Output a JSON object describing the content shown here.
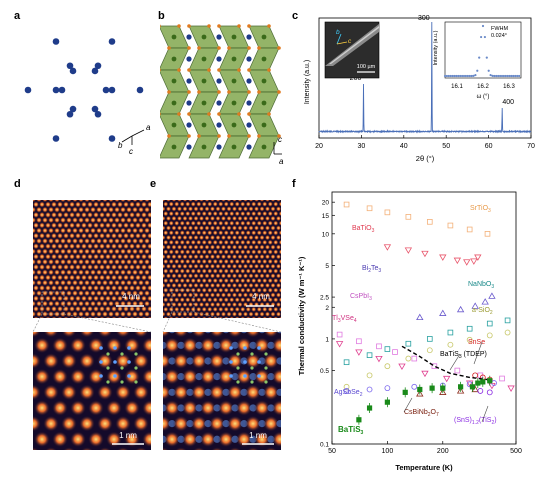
{
  "figure": {
    "panel_labels": {
      "a": "a",
      "b": "b",
      "c": "c",
      "d": "d",
      "e": "e",
      "f": "f"
    },
    "panel_a": {
      "axis_labels": [
        "b",
        "c",
        "a"
      ]
    },
    "panel_b": {
      "axis_labels": [
        "c",
        "a"
      ]
    },
    "panel_c": {
      "ylabel": "Intensity (a.u.)",
      "xlabel": "2θ (°)",
      "xticks": [
        "20",
        "30",
        "40",
        "50",
        "60",
        "70"
      ],
      "peak_labels": [
        {
          "text": "200",
          "x": 30.5
        },
        {
          "text": "300",
          "x": 46.6
        },
        {
          "text": "400",
          "x": 63.2
        }
      ],
      "inset_left": {
        "labels": [
          "b",
          "c"
        ],
        "scalebar": "100 µm"
      },
      "inset_right": {
        "ylabel": "Intensity (a.u.)",
        "xlabel": "ω (°)",
        "xticks": [
          "16.1",
          "16.2",
          "16.3"
        ],
        "annotation_line1": "FWHM",
        "annotation_line2": "0.024°"
      }
    },
    "panel_d": {
      "scalebar_top": "4 nm",
      "scalebar_bottom": "1 nm"
    },
    "panel_e": {
      "scalebar_top": "4 nm",
      "scalebar_bottom": "1 nm"
    }
  },
  "chart_data": {
    "type": "scatter",
    "xlabel": "Temperature (K)",
    "ylabel": "Thermal conductivity (W m⁻¹ K⁻¹)",
    "x_scale": "log",
    "y_scale": "log",
    "xlim": [
      50,
      500
    ],
    "ylim": [
      0.1,
      25
    ],
    "xticks": [
      "50",
      "100",
      "200",
      "500"
    ],
    "yticks": [
      "0.1",
      "0.5",
      "1",
      "2",
      "2.5",
      "5",
      "10",
      "15",
      "20"
    ],
    "series": [
      {
        "name": "SrTiO3",
        "color": "#f3b078",
        "marker": "square",
        "points": [
          [
            60,
            19
          ],
          [
            80,
            17.5
          ],
          [
            100,
            16
          ],
          [
            130,
            14.5
          ],
          [
            170,
            13
          ],
          [
            220,
            12
          ],
          [
            280,
            11
          ],
          [
            350,
            10
          ]
        ]
      },
      {
        "name": "BaTiO3",
        "color": "#e8546a",
        "marker": "tri-down",
        "points": [
          [
            100,
            7.5
          ],
          [
            130,
            7
          ],
          [
            160,
            6.5
          ],
          [
            200,
            6
          ],
          [
            240,
            5.6
          ],
          [
            270,
            5.4
          ],
          [
            295,
            5.5
          ],
          [
            310,
            6
          ]
        ]
      },
      {
        "name": "Bi2Te3",
        "color": "#6a5acd",
        "marker": "tri-up",
        "points": [
          [
            150,
            1.6
          ],
          [
            200,
            1.75
          ],
          [
            250,
            1.9
          ],
          [
            300,
            2.05
          ],
          [
            340,
            2.25
          ],
          [
            370,
            2.55
          ]
        ]
      },
      {
        "name": "NaNbO3",
        "color": "#27a0a0",
        "marker": "square",
        "points": [
          [
            60,
            0.6
          ],
          [
            80,
            0.7
          ],
          [
            100,
            0.8
          ],
          [
            130,
            0.9
          ],
          [
            170,
            1.0
          ],
          [
            220,
            1.15
          ],
          [
            280,
            1.25
          ],
          [
            360,
            1.4
          ],
          [
            450,
            1.5
          ]
        ]
      },
      {
        "name": "a-SiO2",
        "color": "#c8c86a",
        "marker": "circle",
        "points": [
          [
            60,
            0.35
          ],
          [
            80,
            0.45
          ],
          [
            100,
            0.55
          ],
          [
            130,
            0.65
          ],
          [
            170,
            0.78
          ],
          [
            220,
            0.88
          ],
          [
            280,
            0.98
          ],
          [
            360,
            1.08
          ],
          [
            450,
            1.15
          ]
        ]
      },
      {
        "name": "CsPbI3",
        "color": "#e07ae0",
        "marker": "square",
        "points": [
          [
            55,
            1.1
          ],
          [
            70,
            0.95
          ],
          [
            90,
            0.85
          ],
          [
            110,
            0.75
          ],
          [
            140,
            0.65
          ],
          [
            180,
            0.55
          ],
          [
            240,
            0.5
          ],
          [
            320,
            0.45
          ],
          [
            420,
            0.42
          ]
        ]
      },
      {
        "name": "Tl3VSe4",
        "color": "#e04090",
        "marker": "tri-down",
        "points": [
          [
            55,
            0.9
          ],
          [
            70,
            0.75
          ],
          [
            90,
            0.65
          ],
          [
            120,
            0.55
          ],
          [
            160,
            0.47
          ],
          [
            210,
            0.42
          ],
          [
            280,
            0.38
          ],
          [
            370,
            0.36
          ],
          [
            470,
            0.34
          ]
        ]
      },
      {
        "name": "AgSbSe2",
        "color": "#7b68ee",
        "marker": "circle",
        "points": [
          [
            60,
            0.32
          ],
          [
            80,
            0.33
          ],
          [
            100,
            0.34
          ],
          [
            140,
            0.35
          ],
          [
            200,
            0.36
          ],
          [
            280,
            0.37
          ],
          [
            380,
            0.38
          ]
        ]
      },
      {
        "name": "CsBiNb2O7",
        "color": "#8b2b1a",
        "marker": "tri-up",
        "points": [
          [
            150,
            0.3
          ],
          [
            200,
            0.31
          ],
          [
            250,
            0.32
          ],
          [
            300,
            0.33
          ]
        ]
      },
      {
        "name": "SnSe",
        "color": "#d42020",
        "marker": "circle",
        "points": [
          [
            300,
            0.45
          ],
          [
            330,
            0.43
          ],
          [
            360,
            0.41
          ]
        ]
      },
      {
        "name": "(SnS)1.2(TiS2)2",
        "color": "#8a2be2",
        "marker": "circle",
        "points": [
          [
            320,
            0.32
          ],
          [
            360,
            0.31
          ]
        ]
      },
      {
        "name": "BaTiS3 (TDEP)",
        "color": "#000000",
        "marker": "dashed-line",
        "points": [
          [
            120,
            0.85
          ],
          [
            150,
            0.68
          ],
          [
            180,
            0.55
          ],
          [
            220,
            0.47
          ],
          [
            280,
            0.43
          ],
          [
            350,
            0.41
          ]
        ]
      },
      {
        "name": "BaTiS3",
        "color": "#1a8a1a",
        "marker": "filled-square",
        "points": [
          [
            70,
            0.17
          ],
          [
            80,
            0.22
          ],
          [
            100,
            0.25
          ],
          [
            125,
            0.31
          ],
          [
            150,
            0.33
          ],
          [
            175,
            0.34
          ],
          [
            200,
            0.34
          ],
          [
            250,
            0.35
          ],
          [
            290,
            0.35
          ],
          [
            310,
            0.38
          ],
          [
            330,
            0.39
          ],
          [
            360,
            0.4
          ]
        ]
      }
    ],
    "annotations": [
      {
        "text": "SrTiO",
        "sub": "3",
        "color": "#e89a4a"
      },
      {
        "text": "BaTiO",
        "sub": "3",
        "color": "#e03a50"
      },
      {
        "text": "Bi",
        "mid": "2",
        "text2": "Te",
        "sub": "3",
        "color": "#4a3ab0"
      },
      {
        "text": "NaNbO",
        "sub": "3",
        "color": "#1a8a8a"
      },
      {
        "text": "a-SiO",
        "sub": "2",
        "color": "#9a9a30"
      },
      {
        "text": "CsPbI",
        "sub": "3",
        "color": "#c050c0"
      },
      {
        "text": "Tl",
        "mid": "3",
        "text2": "VSe",
        "sub": "4",
        "color": "#d03080"
      },
      {
        "text": "BaTiS",
        "sub": "3",
        "suffix": " (TDEP)",
        "color": "#000000"
      },
      {
        "text": "SnSe",
        "color": "#d42020"
      },
      {
        "text": "AgSbSe",
        "sub": "2",
        "color": "#5a48d0"
      },
      {
        "text": "CsBiNb",
        "mid": "2",
        "text2": "O",
        "sub": "7",
        "color": "#7a2010"
      },
      {
        "text": "(SnS)",
        "mid": "1.2",
        "text2": "(TiS",
        "sub": "2",
        "suffix": ")",
        "color": "#8a2be2"
      },
      {
        "text": "BaTiS",
        "sub": "3",
        "color": "#1a8a1a"
      }
    ]
  }
}
